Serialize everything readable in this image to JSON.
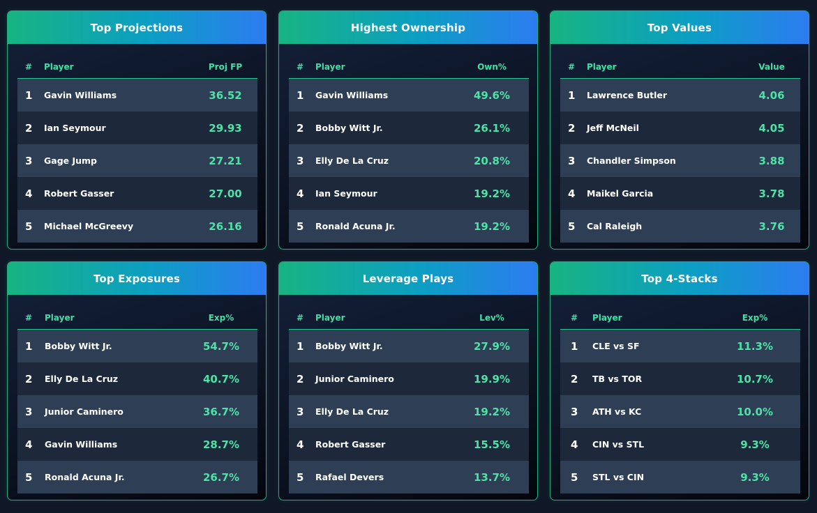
{
  "panels": [
    {
      "title": "Top Projections",
      "headers": {
        "rank": "#",
        "player": "Player",
        "value": "Proj FP"
      },
      "rows": [
        {
          "rank": "1",
          "player": "Gavin Williams",
          "value": "36.52"
        },
        {
          "rank": "2",
          "player": "Ian Seymour",
          "value": "29.93"
        },
        {
          "rank": "3",
          "player": "Gage Jump",
          "value": "27.21"
        },
        {
          "rank": "4",
          "player": "Robert Gasser",
          "value": "27.00"
        },
        {
          "rank": "5",
          "player": "Michael McGreevy",
          "value": "26.16"
        }
      ]
    },
    {
      "title": "Highest Ownership",
      "headers": {
        "rank": "#",
        "player": "Player",
        "value": "Own%"
      },
      "rows": [
        {
          "rank": "1",
          "player": "Gavin Williams",
          "value": "49.6%"
        },
        {
          "rank": "2",
          "player": "Bobby Witt Jr.",
          "value": "26.1%"
        },
        {
          "rank": "3",
          "player": "Elly De La Cruz",
          "value": "20.8%"
        },
        {
          "rank": "4",
          "player": "Ian Seymour",
          "value": "19.2%"
        },
        {
          "rank": "5",
          "player": "Ronald Acuna Jr.",
          "value": "19.2%"
        }
      ]
    },
    {
      "title": "Top Values",
      "headers": {
        "rank": "#",
        "player": "Player",
        "value": "Value"
      },
      "rows": [
        {
          "rank": "1",
          "player": "Lawrence Butler",
          "value": "4.06"
        },
        {
          "rank": "2",
          "player": "Jeff McNeil",
          "value": "4.05"
        },
        {
          "rank": "3",
          "player": "Chandler Simpson",
          "value": "3.88"
        },
        {
          "rank": "4",
          "player": "Maikel Garcia",
          "value": "3.78"
        },
        {
          "rank": "5",
          "player": "Cal Raleigh",
          "value": "3.76"
        }
      ]
    },
    {
      "title": "Top Exposures",
      "headers": {
        "rank": "#",
        "player": "Player",
        "value": "Exp%"
      },
      "rows": [
        {
          "rank": "1",
          "player": "Bobby Witt Jr.",
          "value": "54.7%"
        },
        {
          "rank": "2",
          "player": "Elly De La Cruz",
          "value": "40.7%"
        },
        {
          "rank": "3",
          "player": "Junior Caminero",
          "value": "36.7%"
        },
        {
          "rank": "4",
          "player": "Gavin Williams",
          "value": "28.7%"
        },
        {
          "rank": "5",
          "player": "Ronald Acuna Jr.",
          "value": "26.7%"
        }
      ]
    },
    {
      "title": "Leverage Plays",
      "headers": {
        "rank": "#",
        "player": "Player",
        "value": "Lev%"
      },
      "rows": [
        {
          "rank": "1",
          "player": "Bobby Witt Jr.",
          "value": "27.9%"
        },
        {
          "rank": "2",
          "player": "Junior Caminero",
          "value": "19.9%"
        },
        {
          "rank": "3",
          "player": "Elly De La Cruz",
          "value": "19.2%"
        },
        {
          "rank": "4",
          "player": "Robert Gasser",
          "value": "15.5%"
        },
        {
          "rank": "5",
          "player": "Rafael Devers",
          "value": "13.7%"
        }
      ]
    },
    {
      "title": "Top 4-Stacks",
      "headers": {
        "rank": "#",
        "player": "Player",
        "value": "Exp%"
      },
      "rows": [
        {
          "rank": "1",
          "player": "CLE vs SF",
          "value": "11.3%"
        },
        {
          "rank": "2",
          "player": "TB vs TOR",
          "value": "10.7%"
        },
        {
          "rank": "3",
          "player": "ATH vs KC",
          "value": "10.0%"
        },
        {
          "rank": "4",
          "player": "CIN vs STL",
          "value": "9.3%"
        },
        {
          "rank": "5",
          "player": "STL vs CIN",
          "value": "9.3%"
        }
      ]
    }
  ]
}
